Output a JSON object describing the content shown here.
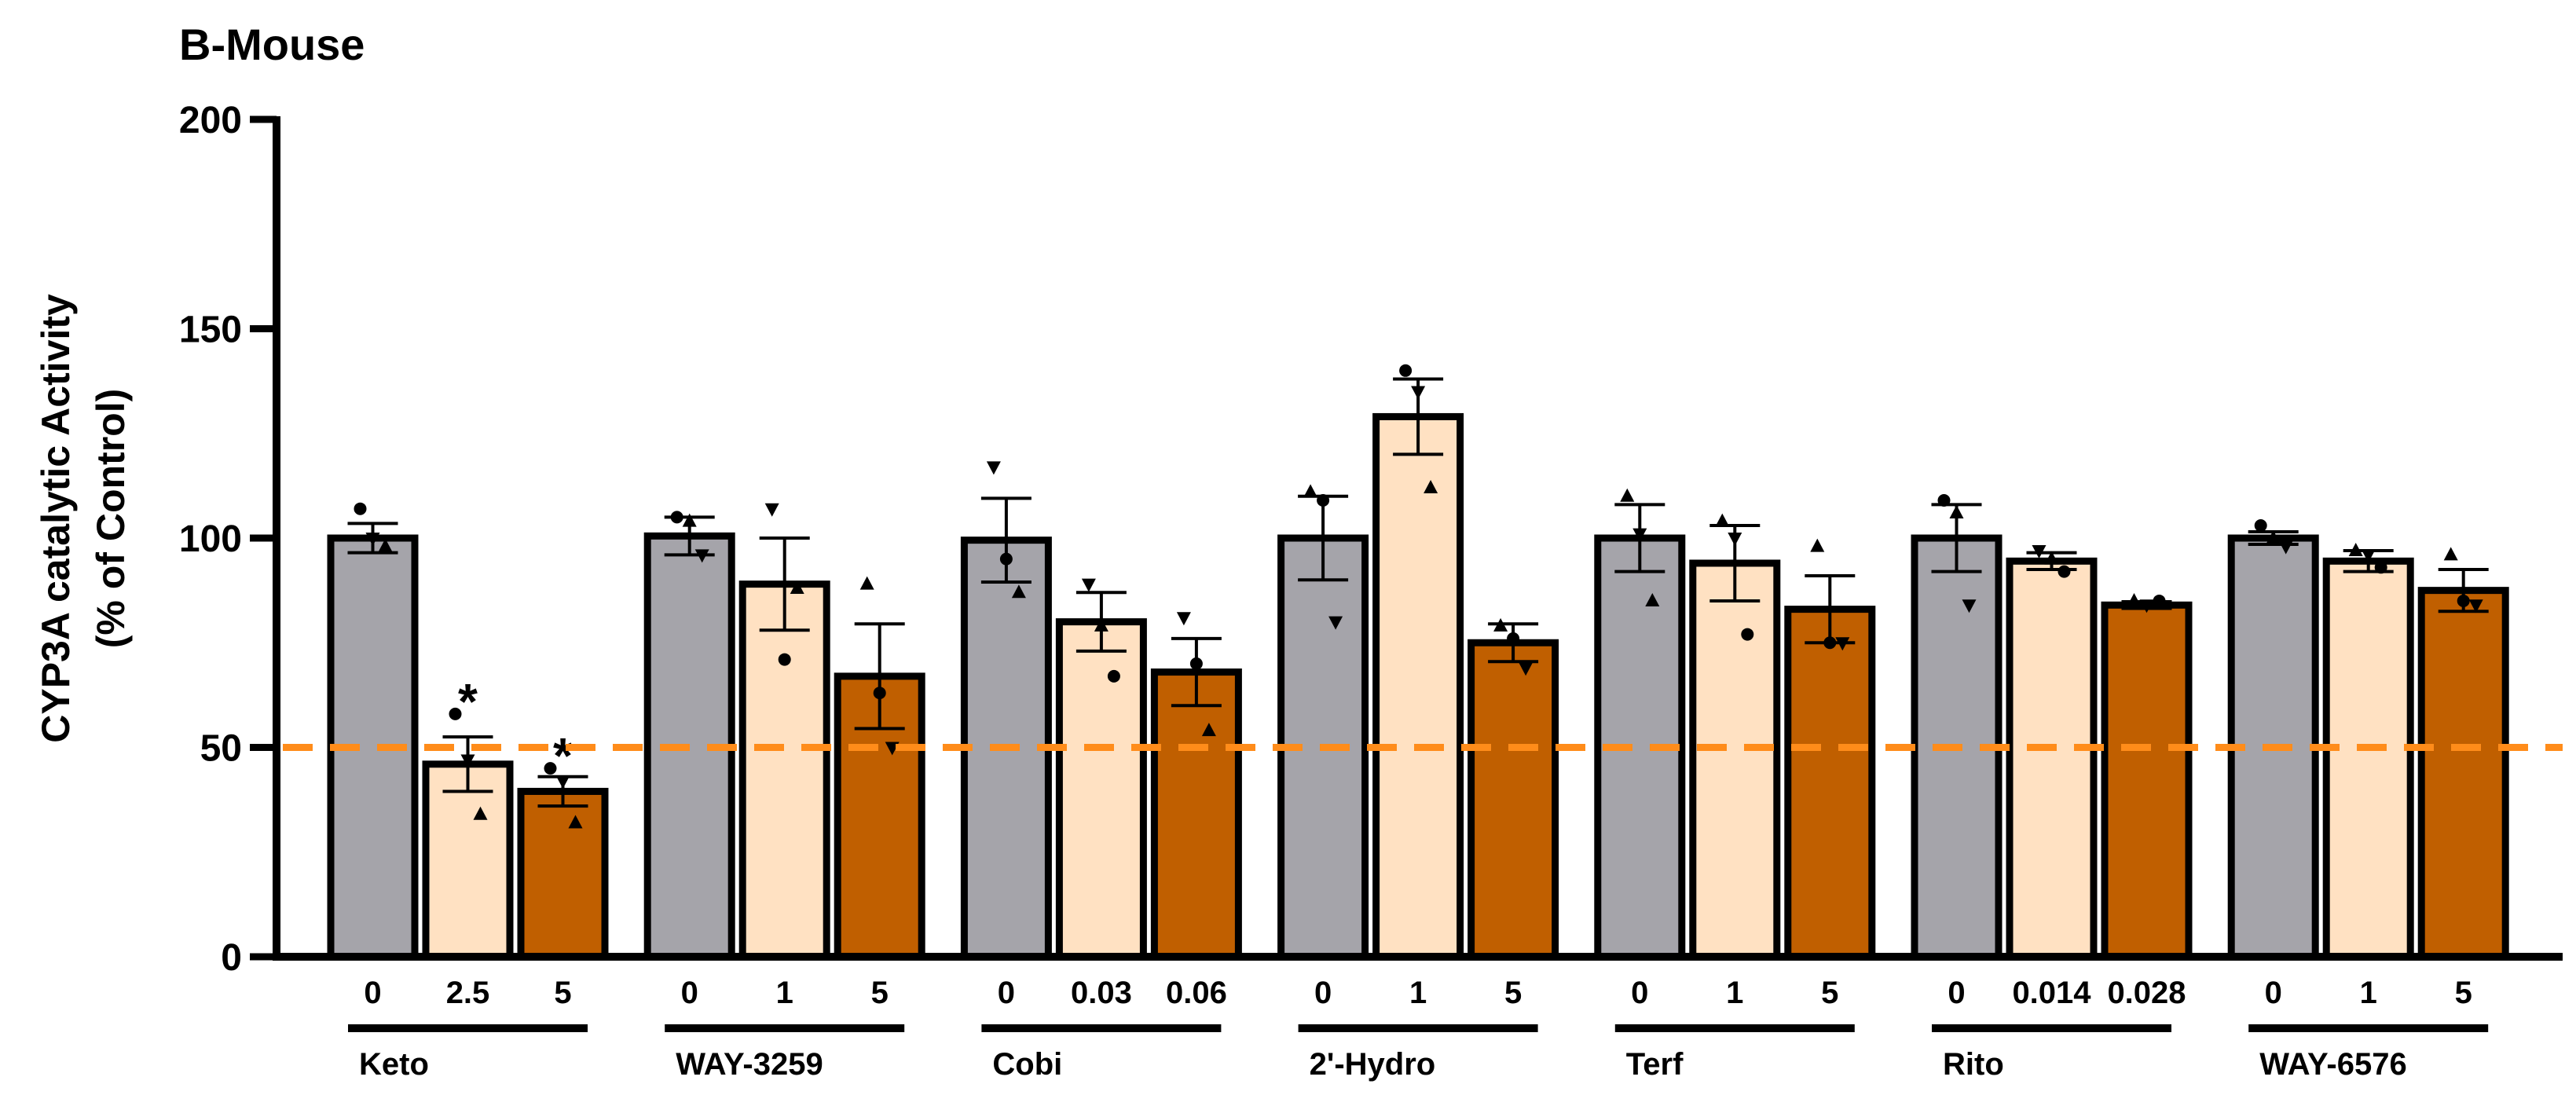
{
  "chart_data": {
    "type": "bar",
    "title": "B-Mouse",
    "xlabel": "",
    "ylabel_lines": [
      "CYP3A catalytic Activity",
      "(% of Control)"
    ],
    "ylim": [
      0,
      200
    ],
    "yticks": [
      "0",
      "50",
      "100",
      "150",
      "200"
    ],
    "reference_line": {
      "y": 50,
      "style": "dashed",
      "color": "#FF8C1A"
    },
    "colors": {
      "dose0": "#A5A4AA",
      "low": "#FFE1C2",
      "high": "#C05F00",
      "outline": "#000000"
    },
    "groups": [
      {
        "name": "Keto",
        "bars": [
          {
            "dose": "0",
            "value": 100,
            "sem": 3.5,
            "points": [
              107,
              100,
              98
            ],
            "markers": [
              "circle",
              "triangle-down",
              "triangle-up"
            ],
            "sig": ""
          },
          {
            "dose": "2.5",
            "value": 46,
            "sem": 6.5,
            "points": [
              58,
              47,
              34
            ],
            "markers": [
              "circle",
              "triangle-down",
              "triangle-up"
            ],
            "sig": "*"
          },
          {
            "dose": "5",
            "value": 39.5,
            "sem": 3.5,
            "points": [
              45,
              42,
              32
            ],
            "markers": [
              "circle",
              "triangle-down",
              "triangle-up"
            ],
            "sig": "*"
          }
        ]
      },
      {
        "name": "WAY-3259",
        "bars": [
          {
            "dose": "0",
            "value": 100.5,
            "sem": 4.5,
            "points": [
              105,
              104,
              96
            ],
            "markers": [
              "circle",
              "triangle-up",
              "triangle-down"
            ],
            "sig": ""
          },
          {
            "dose": "1",
            "value": 89,
            "sem": 11,
            "points": [
              107,
              71,
              88
            ],
            "markers": [
              "triangle-down",
              "circle",
              "triangle-up"
            ],
            "sig": ""
          },
          {
            "dose": "5",
            "value": 67,
            "sem": 12.5,
            "points": [
              89,
              63,
              50
            ],
            "markers": [
              "triangle-up",
              "circle",
              "triangle-down"
            ],
            "sig": ""
          }
        ]
      },
      {
        "name": "Cobi",
        "bars": [
          {
            "dose": "0",
            "value": 99.5,
            "sem": 10,
            "points": [
              117,
              95,
              87
            ],
            "markers": [
              "triangle-down",
              "circle",
              "triangle-up"
            ],
            "sig": ""
          },
          {
            "dose": "0.03",
            "value": 80,
            "sem": 7,
            "points": [
              89,
              79,
              67
            ],
            "markers": [
              "triangle-down",
              "triangle-up",
              "circle"
            ],
            "sig": ""
          },
          {
            "dose": "0.06",
            "value": 68,
            "sem": 8,
            "points": [
              81,
              70,
              54
            ],
            "markers": [
              "triangle-down",
              "circle",
              "triangle-up"
            ],
            "sig": ""
          }
        ]
      },
      {
        "name": "2'-Hydro",
        "bars": [
          {
            "dose": "0",
            "value": 100,
            "sem": 10,
            "points": [
              111,
              109,
              80
            ],
            "markers": [
              "triangle-up",
              "circle",
              "triangle-down"
            ],
            "sig": ""
          },
          {
            "dose": "1",
            "value": 129,
            "sem": 9,
            "points": [
              140,
              135,
              112
            ],
            "markers": [
              "circle",
              "triangle-down",
              "triangle-up"
            ],
            "sig": ""
          },
          {
            "dose": "5",
            "value": 75,
            "sem": 4.5,
            "points": [
              79,
              76,
              69
            ],
            "markers": [
              "triangle-up",
              "circle",
              "triangle-down"
            ],
            "sig": ""
          }
        ]
      },
      {
        "name": "Terf",
        "bars": [
          {
            "dose": "0",
            "value": 100,
            "sem": 8,
            "points": [
              110,
              101,
              85
            ],
            "markers": [
              "triangle-up",
              "triangle-down",
              "triangle-up"
            ],
            "sig": ""
          },
          {
            "dose": "1",
            "value": 94,
            "sem": 9,
            "points": [
              104,
              100,
              77
            ],
            "markers": [
              "triangle-up",
              "triangle-down",
              "circle"
            ],
            "sig": ""
          },
          {
            "dose": "5",
            "value": 83,
            "sem": 8,
            "points": [
              98,
              75,
              75
            ],
            "markers": [
              "triangle-up",
              "circle",
              "triangle-down"
            ],
            "sig": ""
          }
        ]
      },
      {
        "name": "Rito",
        "bars": [
          {
            "dose": "0",
            "value": 100,
            "sem": 8,
            "points": [
              109,
              106,
              84
            ],
            "markers": [
              "circle",
              "triangle-up",
              "triangle-down"
            ],
            "sig": ""
          },
          {
            "dose": "0.014",
            "value": 94.5,
            "sem": 2,
            "points": [
              97,
              95,
              92
            ],
            "markers": [
              "triangle-down",
              "triangle-up",
              "circle"
            ],
            "sig": ""
          },
          {
            "dose": "0.028",
            "value": 84,
            "sem": 0.8,
            "points": [
              85,
              84,
              85
            ],
            "markers": [
              "triangle-up",
              "triangle-down",
              "circle"
            ],
            "sig": ""
          }
        ]
      },
      {
        "name": "WAY-6576",
        "bars": [
          {
            "dose": "0",
            "value": 100,
            "sem": 1.5,
            "points": [
              103,
              100,
              98
            ],
            "markers": [
              "circle",
              "triangle-up",
              "triangle-down"
            ],
            "sig": ""
          },
          {
            "dose": "1",
            "value": 94.5,
            "sem": 2.5,
            "points": [
              97,
              96,
              93
            ],
            "markers": [
              "triangle-up",
              "triangle-down",
              "circle"
            ],
            "sig": ""
          },
          {
            "dose": "5",
            "value": 87.5,
            "sem": 5,
            "points": [
              96,
              85,
              84
            ],
            "markers": [
              "triangle-up",
              "circle",
              "triangle-down"
            ],
            "sig": ""
          }
        ]
      }
    ]
  }
}
